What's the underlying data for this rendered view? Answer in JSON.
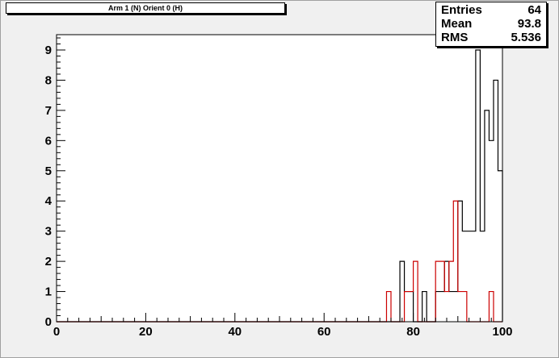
{
  "title": "Arm 1 (N) Orient 0 (H)",
  "stats": [
    {
      "name": "Entries",
      "value": "64"
    },
    {
      "name": "Mean",
      "value": "93.8"
    },
    {
      "name": "RMS",
      "value": "5.536"
    }
  ],
  "chart_data": {
    "type": "histogram",
    "xlim": [
      0,
      100
    ],
    "ylim": [
      0,
      9.5
    ],
    "x_ticks": [
      0,
      20,
      40,
      60,
      80,
      100
    ],
    "y_ticks": [
      0,
      1,
      2,
      3,
      4,
      5,
      6,
      7,
      8,
      9
    ],
    "bin_width": 1,
    "series": [
      {
        "color": "#000000",
        "bins": [
          {
            "x": 77,
            "value": 2
          },
          {
            "x": 78,
            "value": 1
          },
          {
            "x": 79,
            "value": 1
          },
          {
            "x": 82,
            "value": 1
          },
          {
            "x": 85,
            "value": 1
          },
          {
            "x": 86,
            "value": 1
          },
          {
            "x": 87,
            "value": 2
          },
          {
            "x": 88,
            "value": 1
          },
          {
            "x": 89,
            "value": 1
          },
          {
            "x": 90,
            "value": 4
          },
          {
            "x": 91,
            "value": 3
          },
          {
            "x": 92,
            "value": 3
          },
          {
            "x": 93,
            "value": 3
          },
          {
            "x": 94,
            "value": 9
          },
          {
            "x": 95,
            "value": 3
          },
          {
            "x": 96,
            "value": 7
          },
          {
            "x": 97,
            "value": 6
          },
          {
            "x": 98,
            "value": 8
          },
          {
            "x": 99,
            "value": 5
          }
        ]
      },
      {
        "color": "#cc0000",
        "bins": [
          {
            "x": 74,
            "value": 1
          },
          {
            "x": 78,
            "value": 1
          },
          {
            "x": 79,
            "value": 1
          },
          {
            "x": 80,
            "value": 2
          },
          {
            "x": 85,
            "value": 2
          },
          {
            "x": 86,
            "value": 2
          },
          {
            "x": 87,
            "value": 1
          },
          {
            "x": 88,
            "value": 2
          },
          {
            "x": 89,
            "value": 4
          },
          {
            "x": 90,
            "value": 1
          },
          {
            "x": 91,
            "value": 1
          },
          {
            "x": 97,
            "value": 1
          }
        ]
      }
    ]
  }
}
